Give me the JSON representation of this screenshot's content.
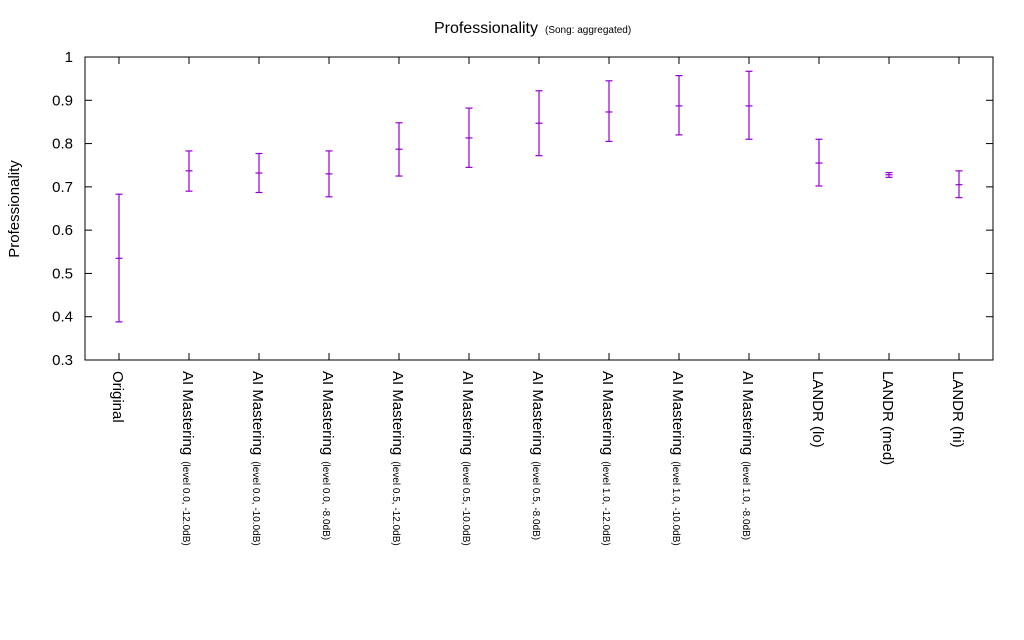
{
  "chart_data": {
    "type": "errorbar",
    "title": "Professionality",
    "subtitle": "(Song: aggregated)",
    "xlabel": "",
    "ylabel": "Professionality",
    "ylim": [
      0.3,
      1.0
    ],
    "yticks": [
      "0.3",
      "0.4",
      "0.5",
      "0.6",
      "0.7",
      "0.8",
      "0.9",
      "1"
    ],
    "grid": false,
    "legend": "none",
    "categories": [
      {
        "main": "Original",
        "sub": ""
      },
      {
        "main": "AI Mastering",
        "sub": "(level 0.0, -12.0dB)"
      },
      {
        "main": "AI Mastering",
        "sub": "(level 0.0, -10.0dB)"
      },
      {
        "main": "AI Mastering",
        "sub": "(level 0.0, -8.0dB)"
      },
      {
        "main": "AI Mastering",
        "sub": "(level 0.5, -12.0dB)"
      },
      {
        "main": "AI Mastering",
        "sub": "(level 0.5, -10.0dB)"
      },
      {
        "main": "AI Mastering",
        "sub": "(level 0.5, -8.0dB)"
      },
      {
        "main": "AI Mastering",
        "sub": "(level 1.0, -12.0dB)"
      },
      {
        "main": "AI Mastering",
        "sub": "(level 1.0, -10.0dB)"
      },
      {
        "main": "AI Mastering",
        "sub": "(level 1.0, -8.0dB)"
      },
      {
        "main": "LANDR (lo)",
        "sub": ""
      },
      {
        "main": "LANDR (med)",
        "sub": ""
      },
      {
        "main": "LANDR (hi)",
        "sub": ""
      }
    ],
    "mean": [
      0.535,
      0.737,
      0.732,
      0.73,
      0.787,
      0.813,
      0.847,
      0.873,
      0.887,
      0.887,
      0.755,
      0.728,
      0.705
    ],
    "lower": [
      0.388,
      0.69,
      0.687,
      0.677,
      0.725,
      0.745,
      0.772,
      0.805,
      0.82,
      0.81,
      0.702,
      0.722,
      0.675
    ],
    "upper": [
      0.683,
      0.783,
      0.777,
      0.783,
      0.848,
      0.882,
      0.922,
      0.945,
      0.957,
      0.967,
      0.81,
      0.733,
      0.737
    ],
    "color": "#9400d3"
  }
}
